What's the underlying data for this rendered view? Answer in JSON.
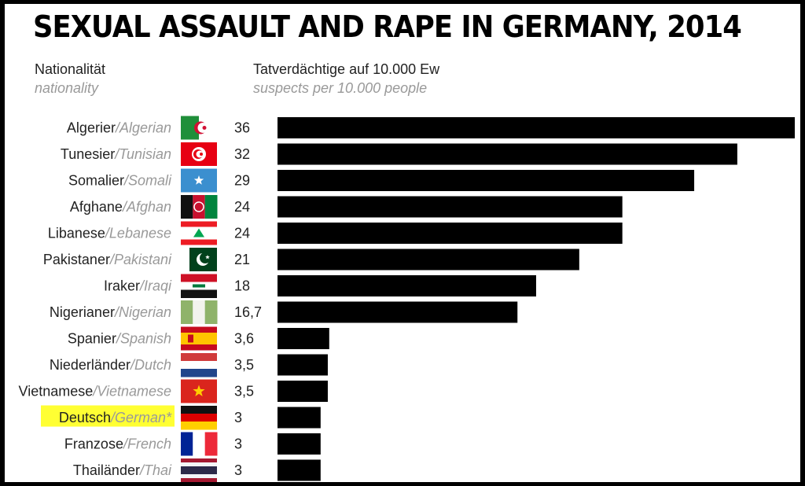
{
  "chart_data": {
    "type": "bar",
    "orientation": "horizontal",
    "title": "SEXUAL ASSAULT AND RAPE IN GERMANY, 2014",
    "category_header": "Nationalität",
    "category_header_en": "nationality",
    "value_header": "Tatverdächtige auf 10.000 Ew",
    "value_header_en": "suspects per 10.000 people",
    "xlim": [
      0,
      36
    ],
    "bar_color": "#000000",
    "highlight_color": "#ffff33",
    "categories": [
      {
        "de": "Algerier",
        "en": "Algerian",
        "value": 36,
        "label": "36",
        "flag": "algeria-flag"
      },
      {
        "de": "Tunesier",
        "en": "Tunisian",
        "value": 32,
        "label": "32",
        "flag": "tunisia-flag"
      },
      {
        "de": "Somalier",
        "en": "Somali",
        "value": 29,
        "label": "29",
        "flag": "somalia-flag"
      },
      {
        "de": "Afghane",
        "en": "Afghan",
        "value": 24,
        "label": "24",
        "flag": "afghanistan-flag"
      },
      {
        "de": "Libanese",
        "en": "Lebanese",
        "value": 24,
        "label": "24",
        "flag": "lebanon-flag"
      },
      {
        "de": "Pakistaner",
        "en": "Pakistani",
        "value": 21,
        "label": "21",
        "flag": "pakistan-flag"
      },
      {
        "de": "Iraker",
        "en": "Iraqi",
        "value": 18,
        "label": "18",
        "flag": "iraq-flag"
      },
      {
        "de": "Nigerianer",
        "en": "Nigerian",
        "value": 16.7,
        "label": "16,7",
        "flag": "nigeria-flag"
      },
      {
        "de": "Spanier",
        "en": "Spanish",
        "value": 3.6,
        "label": "3,6",
        "flag": "spain-flag"
      },
      {
        "de": "Niederländer",
        "en": "Dutch",
        "value": 3.5,
        "label": "3,5",
        "flag": "netherlands-flag"
      },
      {
        "de": "Vietnamese",
        "en": "Vietnamese",
        "value": 3.5,
        "label": "3,5",
        "flag": "vietnam-flag"
      },
      {
        "de": "Deutsch",
        "en": "German*",
        "value": 3,
        "label": "3",
        "flag": "germany-flag",
        "highlight": true
      },
      {
        "de": "Franzose",
        "en": "French",
        "value": 3,
        "label": "3",
        "flag": "france-flag"
      },
      {
        "de": "Thailänder",
        "en": "Thai",
        "value": 3,
        "label": "3",
        "flag": "thailand-flag"
      }
    ]
  }
}
